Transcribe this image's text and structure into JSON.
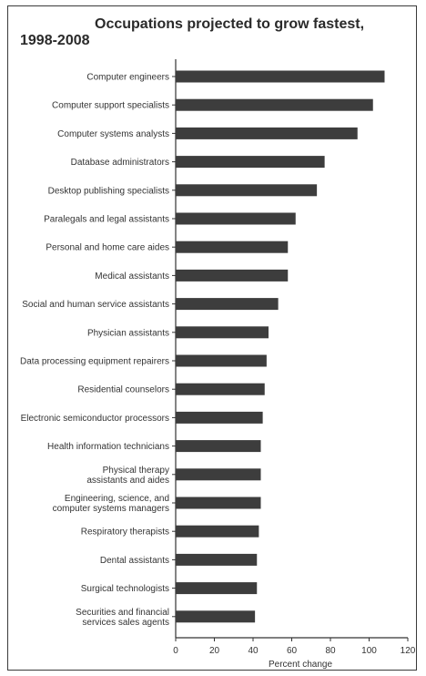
{
  "chart_data": {
    "type": "bar",
    "orientation": "horizontal",
    "title_line1": "Occupations projected to grow fastest,",
    "title_line2": "1998-2008",
    "xlabel": "Percent change",
    "xlim": [
      0,
      120
    ],
    "xticks": [
      "0",
      "20",
      "40",
      "60",
      "80",
      "100",
      "120"
    ],
    "grid": false,
    "categories": [
      "Computer engineers",
      "Computer support specialists",
      "Computer systems analysts",
      "Database administrators",
      "Desktop publishing specialists",
      "Paralegals and legal assistants",
      "Personal and home care aides",
      "Medical assistants",
      "Social and human service assistants",
      "Physician assistants",
      "Data processing equipment repairers",
      "Residential counselors",
      "Electronic semiconductor processors",
      "Health information technicians",
      "Physical therapy assistants and aides",
      "Engineering, science, and computer systems managers",
      "Respiratory therapists",
      "Dental assistants",
      "Surgical technologists",
      "Securities and financial services sales agents"
    ],
    "values": [
      108,
      102,
      94,
      77,
      73,
      62,
      58,
      58,
      53,
      48,
      47,
      46,
      45,
      44,
      44,
      44,
      43,
      42,
      42,
      41
    ]
  },
  "colors": {
    "bar": "#3d3d3d",
    "axis": "#333333",
    "frame": "#3a3a3a"
  }
}
